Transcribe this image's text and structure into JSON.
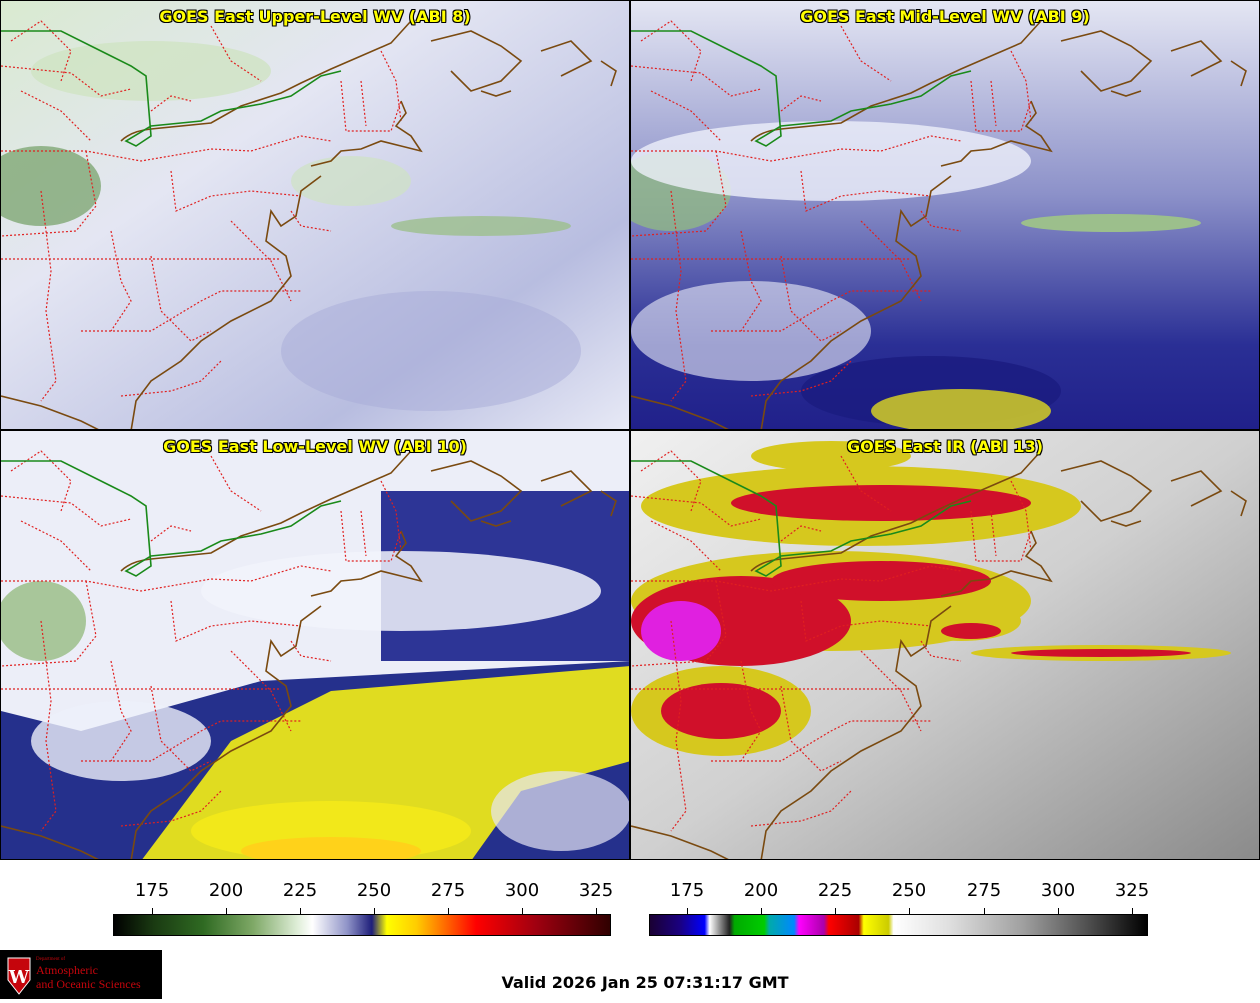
{
  "panels": [
    {
      "title": "GOES East Upper-Level WV (ABI 8)"
    },
    {
      "title": "GOES East Mid-Level WV (ABI 9)"
    },
    {
      "title": "GOES East Low-Level WV (ABI 10)"
    },
    {
      "title": "GOES East IR (ABI 13)"
    }
  ],
  "colorbars": [
    {
      "ticks": [
        "175",
        "200",
        "225",
        "250",
        "275",
        "300",
        "325"
      ]
    },
    {
      "ticks": [
        "175",
        "200",
        "225",
        "250",
        "275",
        "300",
        "325"
      ]
    }
  ],
  "logo": {
    "line1": "Department of",
    "line2": "Atmospheric",
    "line3": "and Oceanic Sciences"
  },
  "valid": "Valid 2026 Jan 25 07:31:17 GMT",
  "colors": {
    "title": "#ffff00",
    "state_lines": "#e02020",
    "coast": "#7a4a10",
    "border": "#1a8a1a"
  }
}
